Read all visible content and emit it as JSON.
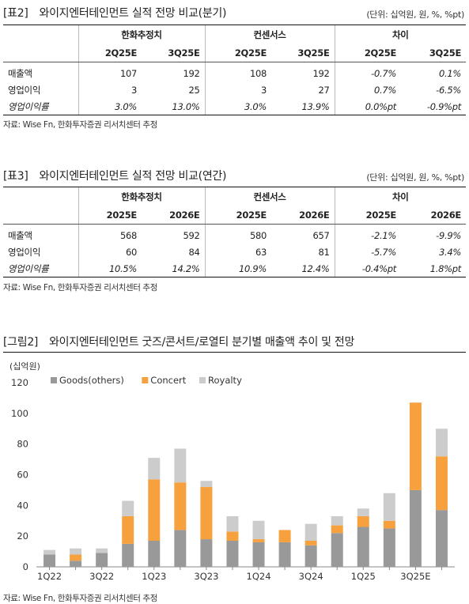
{
  "table2": {
    "number": "[표2]",
    "title": "와이지엔터테인먼트 실적 전망 비교(분기)",
    "unit": "(단위: 십억원, 원, %, %pt)",
    "groups": [
      "한화추정치",
      "컨센서스",
      "차이"
    ],
    "subheaders": [
      "2Q25E",
      "3Q25E",
      "2Q25E",
      "3Q25E",
      "2Q25E",
      "3Q25E"
    ],
    "rows": [
      {
        "label": "매출액",
        "values": [
          "107",
          "192",
          "108",
          "192",
          "-0.7%",
          "0.1%"
        ]
      },
      {
        "label": "영업이익",
        "values": [
          "3",
          "25",
          "3",
          "27",
          "0.7%",
          "-6.5%"
        ]
      },
      {
        "label": "영업이익률",
        "values": [
          "3.0%",
          "13.0%",
          "3.0%",
          "13.9%",
          "0.0%pt",
          "-0.9%pt"
        ]
      }
    ],
    "source": "자료: Wise Fn, 한화투자증권 리서치센터 추정"
  },
  "table3": {
    "number": "[표3]",
    "title": "와이지엔터테인먼트 실적 전망 비교(연간)",
    "unit": "(단위: 십억원, 원, %, %pt)",
    "groups": [
      "한화추정치",
      "컨센서스",
      "차이"
    ],
    "subheaders": [
      "2025E",
      "2026E",
      "2025E",
      "2026E",
      "2025E",
      "2026E"
    ],
    "rows": [
      {
        "label": "매출액",
        "values": [
          "568",
          "592",
          "580",
          "657",
          "-2.1%",
          "-9.9%"
        ]
      },
      {
        "label": "영업이익",
        "values": [
          "60",
          "84",
          "63",
          "81",
          "-5.7%",
          "3.4%"
        ]
      },
      {
        "label": "영업이익률",
        "values": [
          "10.5%",
          "14.2%",
          "10.9%",
          "12.4%",
          "-0.4%pt",
          "1.8%pt"
        ]
      }
    ],
    "source": "자료: Wise Fn, 한화투자증권 리서치센터 추정"
  },
  "figure2": {
    "number": "[그림2]",
    "title": "와이지엔터테인먼트 굿즈/콘서트/로열티 분기별 매출액 추이 및 전망",
    "source": "자료: Wise Fn, 한화투자증권 리서치센터 추정"
  },
  "chart_data": {
    "type": "bar",
    "stacked": true,
    "ylabel": "(십억원)",
    "ylim": [
      0,
      120
    ],
    "yticks": [
      0,
      20,
      40,
      60,
      80,
      100,
      120
    ],
    "categories": [
      "1Q22",
      "2Q22",
      "3Q22",
      "4Q22",
      "1Q23",
      "2Q23",
      "3Q23",
      "4Q23",
      "1Q24",
      "2Q24",
      "3Q24",
      "4Q24",
      "1Q25",
      "2Q25E",
      "3Q25E",
      "4Q25E"
    ],
    "tick_labels": [
      "1Q22",
      "3Q22",
      "1Q23",
      "3Q23",
      "1Q24",
      "3Q24",
      "1Q25",
      "3Q25E"
    ],
    "legend_position": "top-left",
    "series": [
      {
        "name": "Goods(others)",
        "color": "#999999",
        "values": [
          8,
          4,
          9,
          15,
          17,
          24,
          18,
          17,
          16,
          16,
          14,
          22,
          26,
          25,
          50,
          37
        ]
      },
      {
        "name": "Concert",
        "color": "#f7a13e",
        "values": [
          0,
          4,
          0,
          18,
          40,
          31,
          34,
          6,
          2,
          8,
          3,
          5,
          7,
          5,
          57,
          35
        ]
      },
      {
        "name": "Royalty",
        "color": "#cccccc",
        "values": [
          3,
          4,
          3,
          10,
          14,
          22,
          4,
          10,
          12,
          0,
          11,
          6,
          5,
          18,
          0,
          18
        ]
      }
    ]
  }
}
